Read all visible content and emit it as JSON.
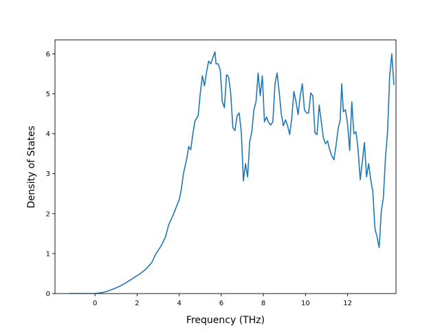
{
  "chart_data": {
    "type": "line",
    "title": "",
    "xlabel": "Frequency (THz)",
    "ylabel": "Density of States",
    "xlim": [
      -1.9,
      14.3
    ],
    "ylim": [
      0,
      6.35
    ],
    "xticks": [
      0,
      2,
      4,
      6,
      8,
      10,
      12
    ],
    "yticks": [
      0,
      1,
      2,
      3,
      4,
      5,
      6
    ],
    "grid": false,
    "legend": "none",
    "series": [
      {
        "color": "#1f77b4",
        "points": [
          [
            -1.2,
            0.0
          ],
          [
            0.0,
            0.0
          ],
          [
            0.3,
            0.02
          ],
          [
            0.6,
            0.06
          ],
          [
            0.9,
            0.12
          ],
          [
            1.2,
            0.19
          ],
          [
            1.5,
            0.28
          ],
          [
            1.8,
            0.38
          ],
          [
            2.1,
            0.48
          ],
          [
            2.4,
            0.6
          ],
          [
            2.7,
            0.78
          ],
          [
            2.9,
            1.0
          ],
          [
            3.15,
            1.2
          ],
          [
            3.35,
            1.42
          ],
          [
            3.5,
            1.72
          ],
          [
            3.7,
            1.95
          ],
          [
            3.85,
            2.15
          ],
          [
            4.0,
            2.35
          ],
          [
            4.1,
            2.6
          ],
          [
            4.2,
            3.0
          ],
          [
            4.35,
            3.35
          ],
          [
            4.45,
            3.68
          ],
          [
            4.55,
            3.6
          ],
          [
            4.65,
            4.0
          ],
          [
            4.75,
            4.32
          ],
          [
            4.9,
            4.45
          ],
          [
            5.0,
            5.0
          ],
          [
            5.1,
            5.45
          ],
          [
            5.2,
            5.2
          ],
          [
            5.3,
            5.55
          ],
          [
            5.4,
            5.82
          ],
          [
            5.5,
            5.75
          ],
          [
            5.6,
            5.9
          ],
          [
            5.7,
            6.05
          ],
          [
            5.75,
            5.75
          ],
          [
            5.85,
            5.75
          ],
          [
            5.95,
            5.6
          ],
          [
            6.05,
            4.8
          ],
          [
            6.15,
            4.65
          ],
          [
            6.25,
            5.48
          ],
          [
            6.35,
            5.42
          ],
          [
            6.45,
            5.0
          ],
          [
            6.55,
            4.15
          ],
          [
            6.65,
            4.08
          ],
          [
            6.75,
            4.45
          ],
          [
            6.85,
            4.52
          ],
          [
            6.95,
            4.05
          ],
          [
            7.05,
            2.82
          ],
          [
            7.15,
            3.25
          ],
          [
            7.25,
            2.92
          ],
          [
            7.35,
            3.8
          ],
          [
            7.45,
            4.05
          ],
          [
            7.55,
            4.6
          ],
          [
            7.65,
            4.8
          ],
          [
            7.75,
            5.52
          ],
          [
            7.85,
            4.95
          ],
          [
            7.95,
            5.45
          ],
          [
            8.05,
            4.3
          ],
          [
            8.15,
            4.42
          ],
          [
            8.25,
            4.28
          ],
          [
            8.35,
            4.22
          ],
          [
            8.45,
            4.3
          ],
          [
            8.55,
            5.25
          ],
          [
            8.65,
            5.52
          ],
          [
            8.75,
            5.05
          ],
          [
            8.85,
            4.5
          ],
          [
            8.95,
            4.2
          ],
          [
            9.05,
            4.35
          ],
          [
            9.15,
            4.2
          ],
          [
            9.25,
            3.98
          ],
          [
            9.35,
            4.4
          ],
          [
            9.45,
            5.06
          ],
          [
            9.55,
            4.8
          ],
          [
            9.65,
            4.48
          ],
          [
            9.75,
            4.95
          ],
          [
            9.85,
            5.25
          ],
          [
            9.95,
            4.6
          ],
          [
            10.05,
            4.52
          ],
          [
            10.15,
            4.52
          ],
          [
            10.25,
            5.02
          ],
          [
            10.35,
            4.95
          ],
          [
            10.45,
            4.02
          ],
          [
            10.55,
            3.98
          ],
          [
            10.65,
            4.72
          ],
          [
            10.75,
            4.3
          ],
          [
            10.85,
            3.9
          ],
          [
            10.95,
            3.75
          ],
          [
            11.05,
            3.82
          ],
          [
            11.15,
            3.6
          ],
          [
            11.25,
            3.45
          ],
          [
            11.35,
            3.35
          ],
          [
            11.45,
            3.7
          ],
          [
            11.55,
            4.12
          ],
          [
            11.65,
            4.35
          ],
          [
            11.72,
            5.25
          ],
          [
            11.8,
            4.55
          ],
          [
            11.9,
            4.6
          ],
          [
            12.0,
            4.25
          ],
          [
            12.1,
            3.58
          ],
          [
            12.2,
            4.8
          ],
          [
            12.3,
            4.0
          ],
          [
            12.4,
            4.05
          ],
          [
            12.5,
            3.6
          ],
          [
            12.6,
            2.85
          ],
          [
            12.7,
            3.3
          ],
          [
            12.8,
            3.78
          ],
          [
            12.9,
            2.92
          ],
          [
            13.0,
            3.25
          ],
          [
            13.1,
            2.85
          ],
          [
            13.2,
            2.55
          ],
          [
            13.3,
            1.62
          ],
          [
            13.4,
            1.42
          ],
          [
            13.5,
            1.15
          ],
          [
            13.6,
            2.05
          ],
          [
            13.7,
            2.4
          ],
          [
            13.8,
            3.4
          ],
          [
            13.9,
            4.05
          ],
          [
            14.0,
            5.45
          ],
          [
            14.1,
            6.0
          ],
          [
            14.2,
            5.22
          ]
        ]
      }
    ]
  }
}
